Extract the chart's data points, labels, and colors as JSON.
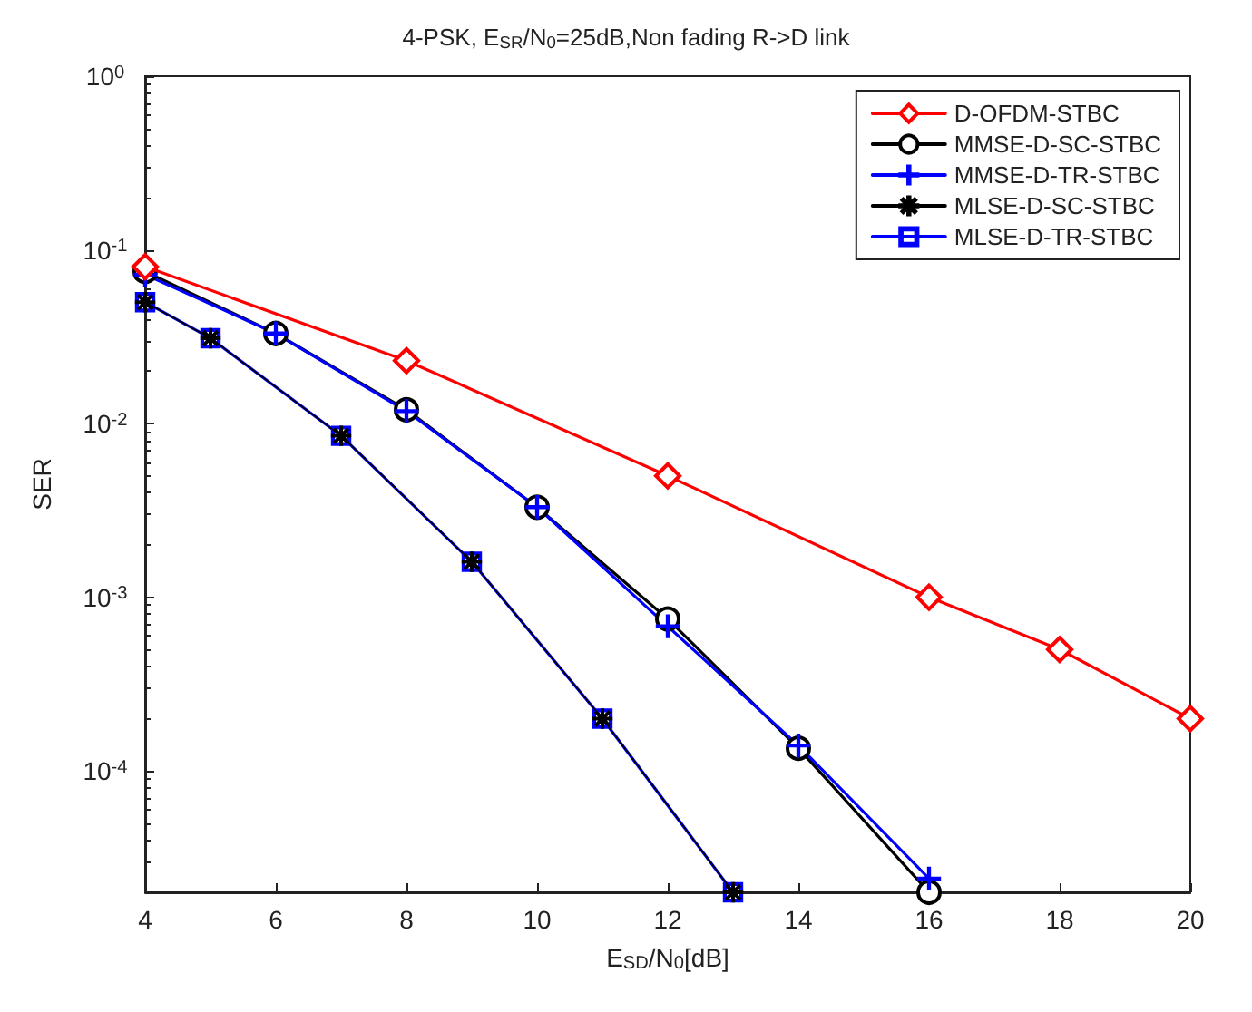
{
  "chart_data": {
    "type": "line",
    "title": "4-PSK, E$_{SR}$/N$_{0}$=25dB,Non fading R->D link",
    "xlabel": "E$_{SD}$/N$_{0}$[dB]",
    "ylabel": "SER",
    "log": "y",
    "grid": false,
    "legend": "top right",
    "line_style": "solid",
    "xlim": [
      4,
      20
    ],
    "xticks": [
      4,
      6,
      8,
      10,
      12,
      14,
      16,
      18,
      20
    ],
    "ylim": [
      2e-05,
      1
    ],
    "yticks": [
      {
        "value": 1,
        "label": "10$^{0}$"
      },
      {
        "value": 0.1,
        "label": "10$^{-1}$"
      },
      {
        "value": 0.01,
        "label": "10$^{-2}$"
      },
      {
        "value": 0.001,
        "label": "10$^{-3}$"
      },
      {
        "value": 0.0001,
        "label": "10$^{-4}$"
      }
    ],
    "series": [
      {
        "name": "D-OFDM-STBC",
        "color": "#ff0000",
        "marker": "diamond",
        "x": [
          4,
          8,
          12,
          16,
          18,
          20
        ],
        "values": [
          0.08,
          0.023,
          0.005,
          0.001,
          0.0005,
          0.0002
        ]
      },
      {
        "name": "MMSE-D-SC-STBC",
        "color": "#000000",
        "marker": "circle",
        "x": [
          4,
          6,
          8,
          10,
          12,
          14,
          16
        ],
        "values": [
          0.075,
          0.033,
          0.012,
          0.0033,
          0.00075,
          0.000135,
          2e-05
        ]
      },
      {
        "name": "MMSE-D-TR-STBC",
        "color": "#0000ff",
        "marker": "cross",
        "x": [
          4,
          6,
          8,
          10,
          12,
          14,
          16
        ],
        "values": [
          0.072,
          0.033,
          0.0118,
          0.0033,
          0.00068,
          0.00014,
          2.4e-05
        ]
      },
      {
        "name": "MLSE-D-SC-STBC",
        "color": "#000000",
        "marker": "star",
        "x": [
          4,
          5,
          7,
          9,
          11,
          13
        ],
        "values": [
          0.05,
          0.031,
          0.0085,
          0.0016,
          0.0002,
          2e-05
        ]
      },
      {
        "name": "MLSE-D-TR-STBC",
        "color": "#0000ff",
        "marker": "square",
        "x": [
          4,
          5,
          7,
          9,
          11,
          13
        ],
        "values": [
          0.05,
          0.031,
          0.0085,
          0.0016,
          0.0002,
          2e-05
        ]
      }
    ]
  }
}
